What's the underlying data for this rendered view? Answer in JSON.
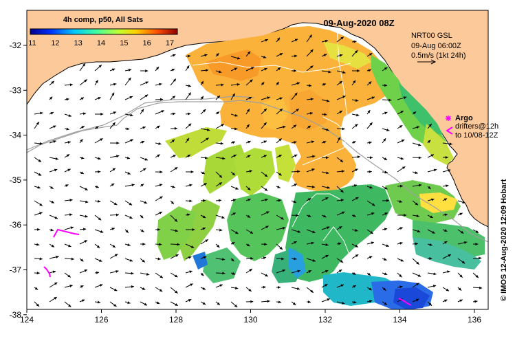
{
  "header": {
    "colorbar_title": "4h comp, p50, All Sats",
    "date_title": "09-Aug-2020 08Z"
  },
  "colorbar": {
    "ticks": [
      "11",
      "12",
      "13",
      "14",
      "15",
      "16",
      "17"
    ]
  },
  "current_key": {
    "line1": "NRT00 GSL",
    "line2": "09-Aug 06:00Z",
    "line3": "0.5m/s (1kt 24h)"
  },
  "argo_legend": {
    "label": "Argo",
    "drifter_line1": "drifters@12h",
    "drifter_line2": "to 10/08-12Z"
  },
  "copyright": "© IMOS 12-Aug-2020 12:09 Hobart",
  "axes": {
    "x_ticks": [
      "124",
      "126",
      "128",
      "130",
      "132",
      "134",
      "136"
    ],
    "y_ticks": [
      "-32",
      "-33",
      "-34",
      "-35",
      "-36",
      "-37",
      "-38"
    ]
  },
  "colors": {
    "land": "#fcc99a",
    "arrow": "#000000",
    "argo": "#ff00ff"
  }
}
